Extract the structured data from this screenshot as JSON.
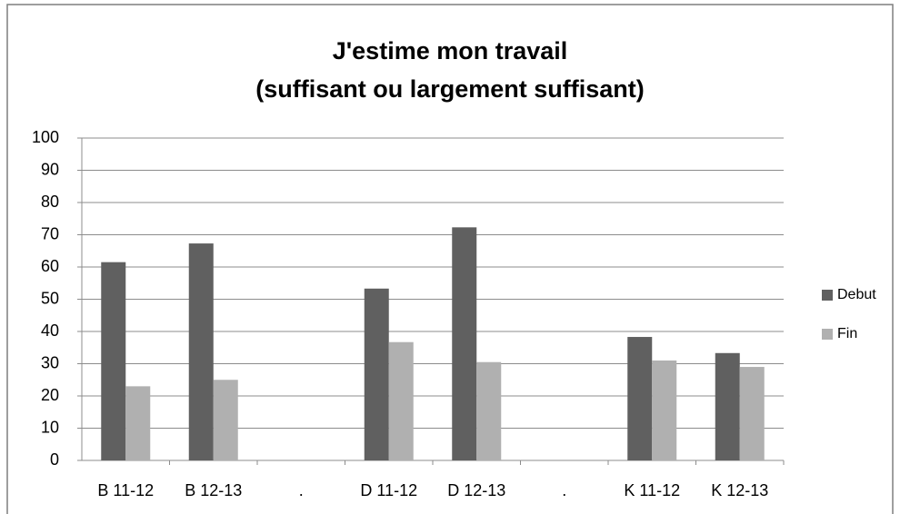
{
  "chart_data": {
    "type": "bar",
    "title": "J'estime mon travail",
    "subtitle": "(suffisant ou largement suffisant)",
    "categories": [
      "B 11-12",
      "B 12-13",
      ".",
      "D 11-12",
      "D 12-13",
      ".",
      "K 11-12",
      "K 12-13"
    ],
    "series": [
      {
        "name": "Debut",
        "color": "#606060",
        "values": [
          61.5,
          67.3,
          null,
          53.3,
          72.3,
          null,
          38.3,
          33.3
        ]
      },
      {
        "name": "Fin",
        "color": "#b0b0b0",
        "values": [
          23,
          25,
          null,
          36.7,
          30.5,
          null,
          31,
          29
        ]
      }
    ],
    "ylim": [
      0,
      100
    ],
    "yticks": [
      0,
      10,
      20,
      30,
      40,
      50,
      60,
      70,
      80,
      90,
      100
    ],
    "grid": true,
    "legend": "right"
  }
}
